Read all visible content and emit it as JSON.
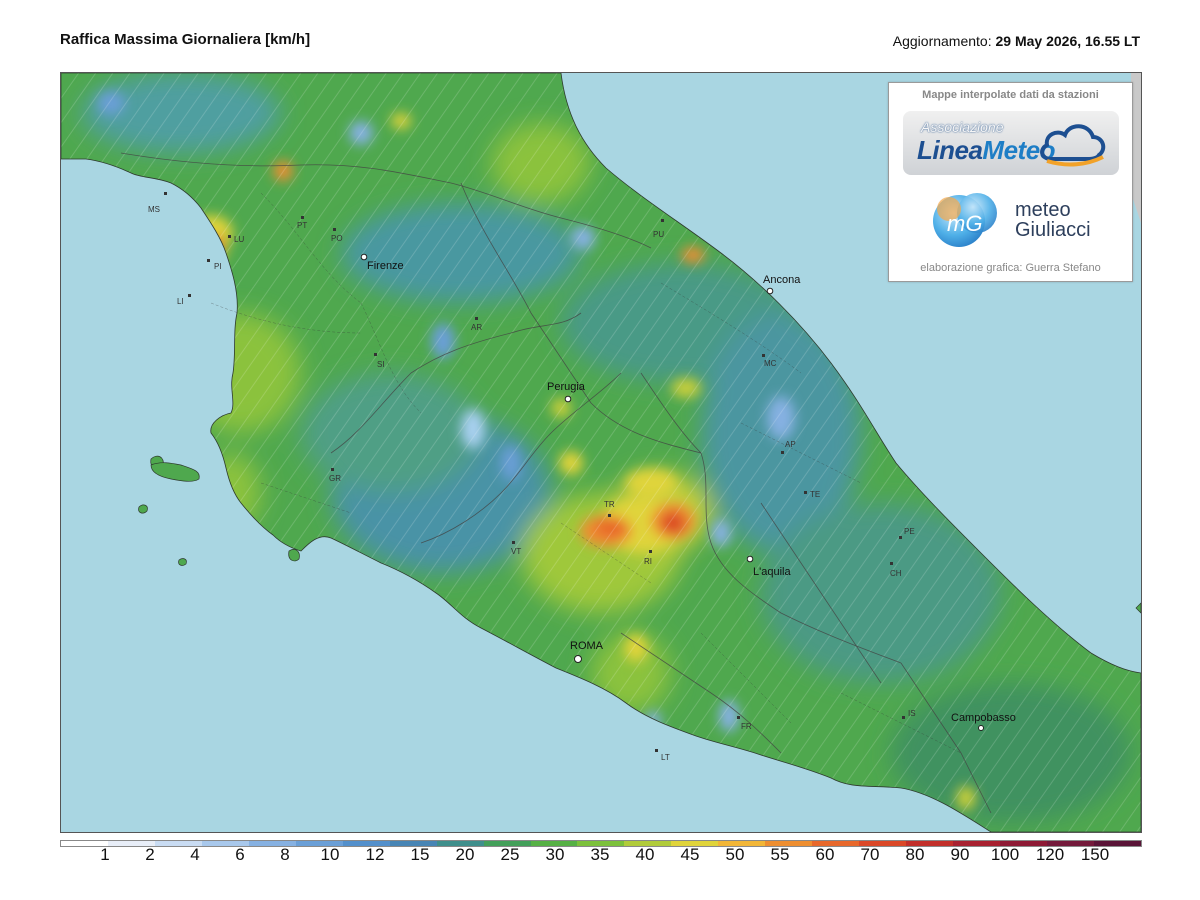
{
  "header": {
    "title": "Raffica Massima Giornaliera [km/h]",
    "updated_label": "Aggiornamento:",
    "updated_value": "29 May 2026, 16.55 LT"
  },
  "credits": {
    "top": "Mappe interpolate dati da stazioni",
    "logo1_small": "Associazione",
    "logo1_big_a": "Linea",
    "logo1_big_b": "Meteo",
    "logo2_mark": "mG",
    "logo2_line1": "meteo",
    "logo2_line2": "Giuliacci",
    "bottom": "elaborazione grafica: Guerra Stefano"
  },
  "cities": [
    {
      "name": "Firenze",
      "major": true
    },
    {
      "name": "Perugia",
      "major": true
    },
    {
      "name": "Ancona",
      "major": true
    },
    {
      "name": "L'aquila",
      "major": true
    },
    {
      "name": "ROMA",
      "major": true
    },
    {
      "name": "Campobasso",
      "major": true
    }
  ],
  "provinces": [
    "MS",
    "LU",
    "PI",
    "LI",
    "PT",
    "PO",
    "AR",
    "SI",
    "GR",
    "VT",
    "TR",
    "RI",
    "PU",
    "MC",
    "AP",
    "TE",
    "PE",
    "CH",
    "IS",
    "FR",
    "LT"
  ],
  "legend": {
    "labels": [
      "1",
      "2",
      "4",
      "6",
      "8",
      "10",
      "12",
      "15",
      "20",
      "25",
      "30",
      "35",
      "40",
      "45",
      "50",
      "55",
      "60",
      "70",
      "80",
      "90",
      "100",
      "120",
      "150"
    ],
    "colors": [
      "#ffffff",
      "#e8eef8",
      "#c9dcf3",
      "#a8c8ec",
      "#86b1e2",
      "#6a9fd7",
      "#5390cc",
      "#4785b5",
      "#3f8f8c",
      "#43a05a",
      "#56b145",
      "#7cc13b",
      "#b1cc3a",
      "#e0d43a",
      "#f2b637",
      "#ee8e30",
      "#e8682b",
      "#db4828",
      "#c22f2a",
      "#a82130",
      "#8e1a35",
      "#741a3b",
      "#5a1437"
    ]
  }
}
